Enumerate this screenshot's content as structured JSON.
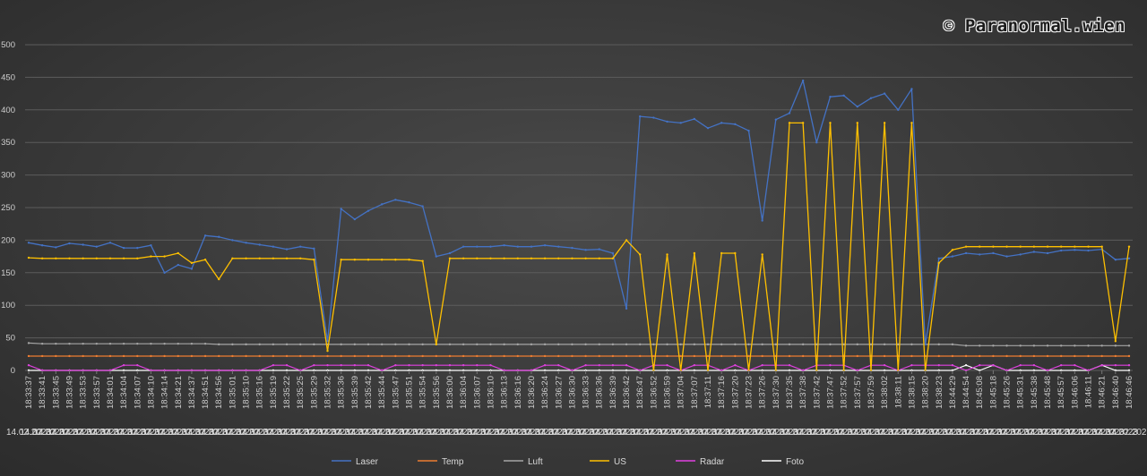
{
  "watermark": "© Paranormal.wien",
  "chart_data": {
    "type": "line",
    "ylim": [
      0,
      500
    ],
    "yticks": [
      0,
      50,
      100,
      150,
      200,
      250,
      300,
      350,
      400,
      450,
      500
    ],
    "grid": true,
    "legend_position": "bottom",
    "date_label": "14.02.2023",
    "x": [
      "18:33:37",
      "18:33:41",
      "18:33:45",
      "18:33:49",
      "18:33:53",
      "18:33:57",
      "18:34:01",
      "18:34:04",
      "18:34:07",
      "18:34:10",
      "18:34:14",
      "18:34:21",
      "18:34:37",
      "18:34:51",
      "18:34:56",
      "18:35:01",
      "18:35:10",
      "18:35:16",
      "18:35:19",
      "18:35:22",
      "18:35:25",
      "18:35:29",
      "18:35:32",
      "18:35:36",
      "18:35:39",
      "18:35:42",
      "18:35:44",
      "18:35:47",
      "18:35:51",
      "18:35:54",
      "18:35:56",
      "18:36:00",
      "18:36:04",
      "18:36:07",
      "18:36:10",
      "18:36:13",
      "18:36:16",
      "18:36:20",
      "18:36:24",
      "18:36:27",
      "18:36:30",
      "18:36:33",
      "18:36:36",
      "18:36:39",
      "18:36:42",
      "18:36:47",
      "18:36:52",
      "18:36:59",
      "18:37:04",
      "18:37:07",
      "18:37:11",
      "18:37:16",
      "18:37:20",
      "18:37:23",
      "18:37:26",
      "18:37:30",
      "18:37:35",
      "18:37:38",
      "18:37:42",
      "18:37:47",
      "18:37:52",
      "18:37:57",
      "18:37:59",
      "18:38:02",
      "18:38:11",
      "18:38:15",
      "18:38:20",
      "18:38:23",
      "18:44:29",
      "18:44:54",
      "18:45:08",
      "18:45:18",
      "18:45:26",
      "18:45:31",
      "18:45:38",
      "18:45:48",
      "18:45:57",
      "18:46:06",
      "18:46:11",
      "18:46:21",
      "18:46:40",
      "18:46:46"
    ],
    "series": [
      {
        "name": "Laser",
        "color": "#4472c4",
        "values": [
          196,
          192,
          189,
          195,
          193,
          190,
          196,
          188,
          188,
          192,
          150,
          162,
          156,
          207,
          205,
          200,
          196,
          193,
          190,
          186,
          190,
          187,
          45,
          248,
          232,
          245,
          255,
          262,
          258,
          252,
          175,
          180,
          190,
          190,
          190,
          192,
          190,
          190,
          192,
          190,
          188,
          185,
          186,
          180,
          95,
          390,
          388,
          382,
          380,
          386,
          372,
          380,
          378,
          368,
          230,
          385,
          395,
          445,
          350,
          420,
          422,
          405,
          418,
          425,
          400,
          432,
          40,
          172,
          175,
          180,
          178,
          180,
          175,
          178,
          182,
          180,
          184,
          185,
          184,
          186,
          170,
          172
        ]
      },
      {
        "name": "Temp",
        "color": "#ed7d31",
        "values": [
          22,
          22,
          22,
          22,
          22,
          22,
          22,
          22,
          22,
          22,
          22,
          22,
          22,
          22,
          22,
          22,
          22,
          22,
          22,
          22,
          22,
          22,
          22,
          22,
          22,
          22,
          22,
          22,
          22,
          22,
          22,
          22,
          22,
          22,
          22,
          22,
          22,
          22,
          22,
          22,
          22,
          22,
          22,
          22,
          22,
          22,
          22,
          22,
          22,
          22,
          22,
          22,
          22,
          22,
          22,
          22,
          22,
          22,
          22,
          22,
          22,
          22,
          22,
          22,
          22,
          22,
          22,
          22,
          22,
          22,
          22,
          22,
          22,
          22,
          22,
          22,
          22,
          22,
          22,
          22,
          22,
          22
        ]
      },
      {
        "name": "Luft",
        "color": "#a5a5a5",
        "values": [
          42,
          41,
          41,
          41,
          41,
          41,
          41,
          41,
          41,
          41,
          41,
          41,
          41,
          41,
          40,
          40,
          40,
          40,
          40,
          40,
          40,
          40,
          40,
          40,
          40,
          40,
          40,
          40,
          40,
          40,
          40,
          40,
          40,
          40,
          40,
          40,
          40,
          40,
          40,
          40,
          40,
          40,
          40,
          40,
          40,
          40,
          40,
          40,
          40,
          40,
          40,
          40,
          40,
          40,
          40,
          40,
          40,
          40,
          40,
          40,
          40,
          40,
          40,
          40,
          40,
          40,
          40,
          40,
          40,
          38,
          38,
          38,
          38,
          38,
          38,
          38,
          38,
          38,
          38,
          38,
          38,
          38
        ]
      },
      {
        "name": "US",
        "color": "#ffc000",
        "values": [
          173,
          172,
          172,
          172,
          172,
          172,
          172,
          172,
          172,
          175,
          175,
          180,
          165,
          170,
          140,
          172,
          172,
          172,
          172,
          172,
          172,
          170,
          30,
          170,
          170,
          170,
          170,
          170,
          170,
          168,
          40,
          172,
          172,
          172,
          172,
          172,
          172,
          172,
          172,
          172,
          172,
          172,
          172,
          172,
          200,
          178,
          0,
          178,
          0,
          180,
          0,
          180,
          180,
          0,
          178,
          0,
          380,
          380,
          0,
          380,
          0,
          380,
          0,
          380,
          0,
          380,
          0,
          165,
          185,
          190,
          190,
          190,
          190,
          190,
          190,
          190,
          190,
          190,
          190,
          190,
          45,
          190
        ]
      },
      {
        "name": "Radar",
        "color": "#e040e0",
        "values": [
          8,
          0,
          0,
          0,
          0,
          0,
          0,
          8,
          8,
          0,
          0,
          0,
          0,
          0,
          0,
          0,
          0,
          0,
          8,
          8,
          0,
          8,
          8,
          8,
          8,
          8,
          0,
          8,
          8,
          8,
          8,
          8,
          8,
          8,
          8,
          0,
          0,
          0,
          8,
          8,
          0,
          8,
          8,
          8,
          8,
          0,
          8,
          8,
          0,
          8,
          8,
          0,
          8,
          0,
          8,
          8,
          8,
          0,
          8,
          8,
          8,
          0,
          8,
          8,
          0,
          8,
          8,
          8,
          8,
          0,
          8,
          8,
          0,
          8,
          8,
          0,
          8,
          8,
          0,
          8,
          8,
          8
        ]
      },
      {
        "name": "Foto",
        "color": "#ffffff",
        "values": [
          0,
          0,
          0,
          0,
          0,
          0,
          0,
          0,
          0,
          0,
          0,
          0,
          0,
          0,
          0,
          0,
          0,
          0,
          0,
          0,
          0,
          0,
          0,
          0,
          0,
          0,
          0,
          0,
          0,
          0,
          0,
          0,
          0,
          0,
          0,
          0,
          0,
          0,
          0,
          0,
          0,
          0,
          0,
          0,
          0,
          0,
          0,
          0,
          0,
          0,
          0,
          0,
          0,
          0,
          0,
          0,
          0,
          0,
          0,
          0,
          0,
          0,
          0,
          0,
          0,
          0,
          0,
          0,
          0,
          8,
          0,
          8,
          0,
          0,
          0,
          0,
          0,
          0,
          0,
          8,
          0,
          0
        ]
      }
    ]
  }
}
